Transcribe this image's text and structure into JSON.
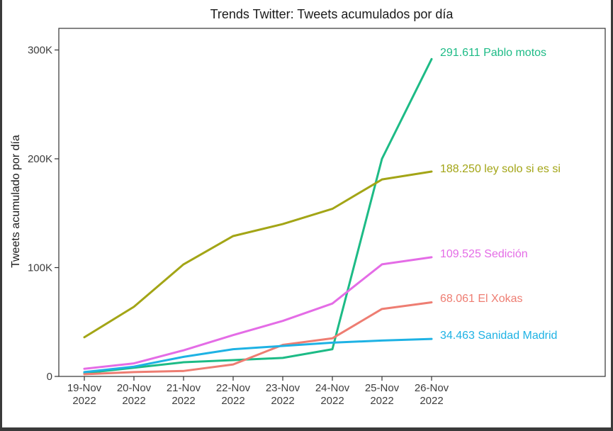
{
  "chart_data": {
    "type": "line",
    "title": "Trends Twitter: Tweets acumulados por día",
    "xlabel": "",
    "ylabel": "Tweets acumulado por día",
    "categories": [
      "19-Nov\n2022",
      "20-Nov\n2022",
      "21-Nov\n2022",
      "22-Nov\n2022",
      "23-Nov\n2022",
      "24-Nov\n2022",
      "25-Nov\n2022",
      "26-Nov\n2022"
    ],
    "ylim": [
      0,
      320000
    ],
    "yticks": [
      0,
      100000,
      200000,
      300000
    ],
    "ytick_labels": [
      "0",
      "100K",
      "200K",
      "300K"
    ],
    "grid": false,
    "series": [
      {
        "end_label": "291.611 Pablo motos",
        "color": "#1dbb86",
        "values": [
          3000,
          8000,
          13000,
          15000,
          17000,
          25000,
          200000,
          291611
        ]
      },
      {
        "end_label": "188.250 ley solo si es si",
        "color": "#a3a516",
        "values": [
          36000,
          64000,
          103000,
          129000,
          140000,
          154000,
          181000,
          188250
        ]
      },
      {
        "end_label": "109.525 Sedición",
        "color": "#e46ce6",
        "values": [
          7000,
          12000,
          24000,
          38000,
          51000,
          67000,
          103000,
          109525
        ]
      },
      {
        "end_label": "68.061 El Xokas",
        "color": "#ee7d72",
        "values": [
          2000,
          4000,
          5000,
          11000,
          29000,
          35000,
          62000,
          68061
        ]
      },
      {
        "end_label": "34.463 Sanidad Madrid",
        "color": "#1eb2e4",
        "values": [
          4000,
          9000,
          18000,
          25000,
          28000,
          31000,
          33000,
          34463
        ]
      }
    ]
  }
}
